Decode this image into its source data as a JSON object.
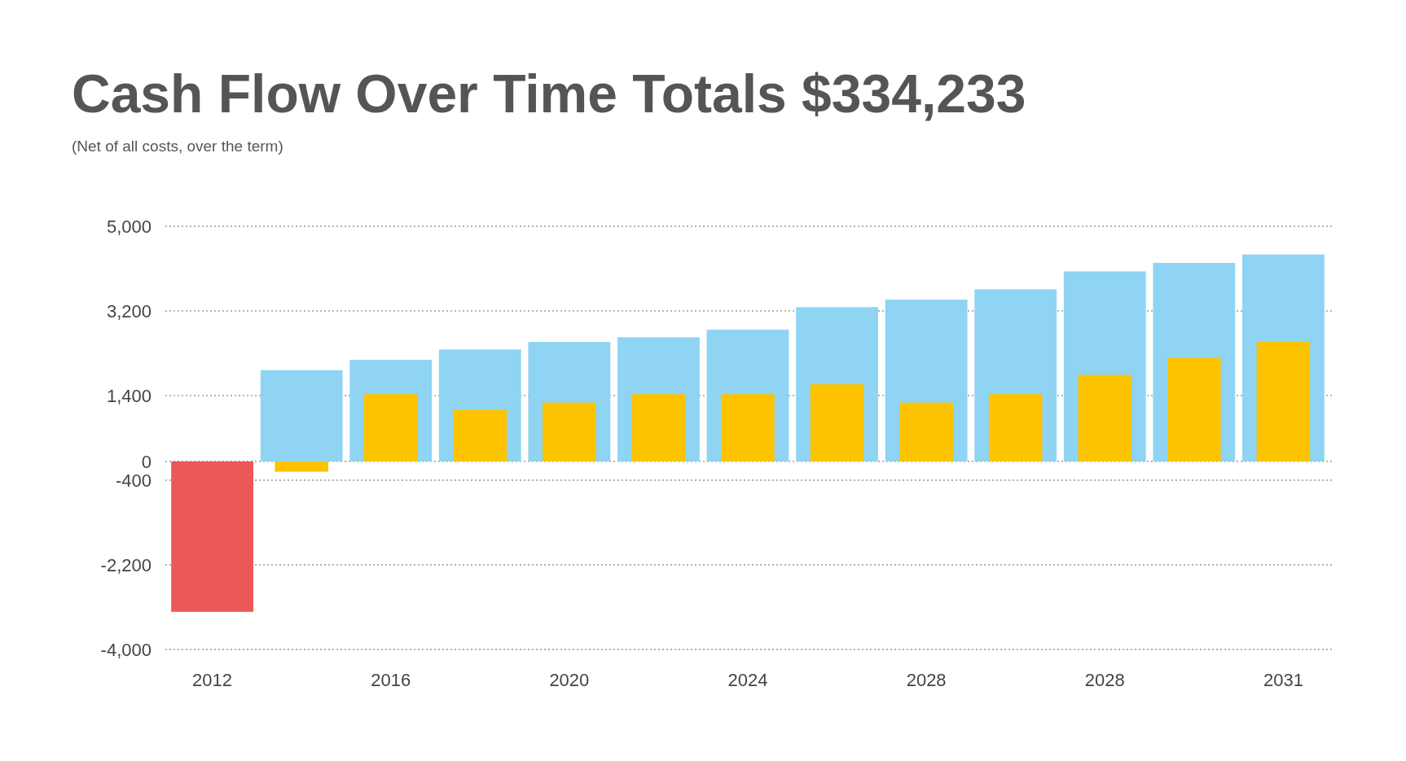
{
  "chart_data": {
    "type": "bar",
    "title": "Cash Flow Over Time Totals $334,233",
    "subtitle": "(Net of all costs, over the term)",
    "categories": [
      "2012",
      null,
      "2016",
      null,
      "2020",
      null,
      "2024",
      null,
      "2028",
      null,
      "2028",
      null,
      "2031"
    ],
    "series": [
      {
        "colors": [
          "#ec5858",
          "#8fd4f3",
          "#8fd4f3",
          "#8fd4f3",
          "#8fd4f3",
          "#8fd4f3",
          "#8fd4f3",
          "#8fd4f3",
          "#8fd4f3",
          "#8fd4f3",
          "#8fd4f3",
          "#8fd4f3",
          "#8fd4f3"
        ],
        "values": [
          -3200,
          1940,
          2160,
          2380,
          2540,
          2640,
          2800,
          3280,
          3440,
          3660,
          4040,
          4220,
          4400
        ]
      },
      {
        "color": "#fdc300",
        "values": [
          null,
          -220,
          1430,
          1100,
          1250,
          1430,
          1430,
          1640,
          1250,
          1430,
          1840,
          2200,
          2540
        ]
      }
    ],
    "ylim": [
      -4000,
      5000
    ],
    "yticks": [
      {
        "value": 5000,
        "label": "5,000"
      },
      {
        "value": 3200,
        "label": "3,200"
      },
      {
        "value": 1400,
        "label": "1,400"
      },
      0,
      -400,
      {
        "value": -2200,
        "label": "-2,200"
      },
      {
        "value": -4000,
        "label": "-4,000"
      }
    ],
    "grid": "y"
  }
}
